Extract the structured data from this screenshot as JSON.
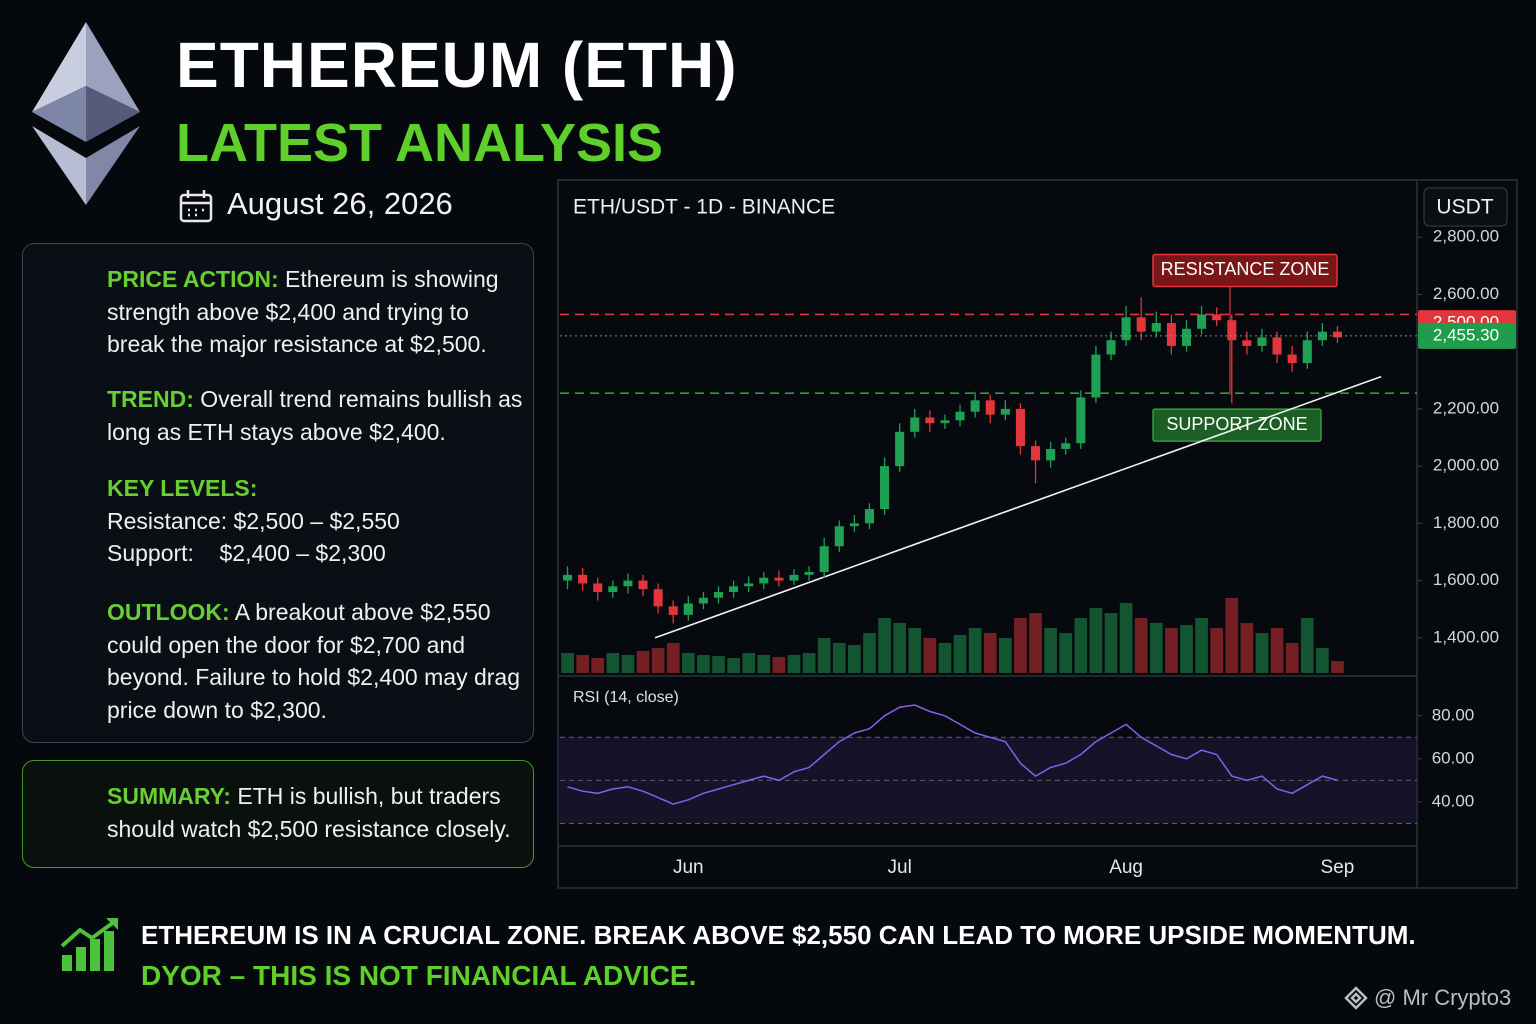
{
  "header": {
    "title": "ETHEREUM (ETH)",
    "subtitle": "LATEST ANALYSIS",
    "date": "August 26, 2026"
  },
  "analysis": [
    {
      "label": "PRICE ACTION:",
      "text": "Ethereum is showing strength above $2,400 and trying to break the major resistance at $2,500."
    },
    {
      "label": "TREND:",
      "text": "Overall trend remains bullish as long as ETH stays above $2,400."
    },
    {
      "label": "KEY LEVELS:",
      "lines": [
        "Resistance: $2,500 – $2,550",
        "Support:    $2,400 – $2,300"
      ]
    },
    {
      "label": "OUTLOOK:",
      "text": "A breakout above $2,550 could open the door for $2,700 and beyond. Failure to hold $2,400 may drag price down to $2,300."
    }
  ],
  "summary": {
    "label": "SUMMARY:",
    "text": "ETH is bullish, but traders should watch $2,500 resistance closely."
  },
  "footer": {
    "headline": "ETHEREUM IS IN A CRUCIAL ZONE. BREAK ABOVE $2,550 CAN LEAD TO MORE UPSIDE MOMENTUM.",
    "disclaimer": "DYOR – THIS IS NOT FINANCIAL ADVICE.",
    "watermark": "@ Mr Crypto3"
  },
  "chart_data": {
    "type": "candlestick",
    "title": "ETH/USDT - 1D - BINANCE",
    "currency": "USDT",
    "categories": [
      null,
      null,
      null,
      null,
      null,
      null,
      null,
      null,
      "Jun",
      null,
      null,
      null,
      null,
      null,
      null,
      null,
      null,
      null,
      null,
      null,
      null,
      null,
      "Jul",
      null,
      null,
      null,
      null,
      null,
      null,
      null,
      null,
      null,
      null,
      null,
      null,
      null,
      null,
      "Aug",
      null,
      null,
      null,
      null,
      null,
      null,
      null,
      null,
      null,
      null,
      null,
      null,
      null,
      "Sep"
    ],
    "open": [
      1600,
      1620,
      1590,
      1560,
      1580,
      1600,
      1570,
      1510,
      1480,
      1520,
      1540,
      1560,
      1580,
      1590,
      1610,
      1600,
      1620,
      1630,
      1720,
      1790,
      1800,
      1850,
      2000,
      2120,
      2170,
      2150,
      2160,
      2190,
      2230,
      2180,
      2200,
      2070,
      2020,
      2060,
      2080,
      2240,
      2390,
      2440,
      2520,
      2470,
      2500,
      2420,
      2480,
      2530,
      2510,
      2440,
      2420,
      2450,
      2390,
      2360,
      2440,
      2470
    ],
    "high": [
      1650,
      1645,
      1610,
      1600,
      1625,
      1620,
      1590,
      1530,
      1545,
      1560,
      1580,
      1600,
      1615,
      1630,
      1635,
      1640,
      1650,
      1750,
      1810,
      1830,
      1870,
      2030,
      2150,
      2200,
      2195,
      2180,
      2215,
      2260,
      2250,
      2230,
      2220,
      2090,
      2085,
      2100,
      2265,
      2420,
      2470,
      2560,
      2590,
      2540,
      2530,
      2510,
      2560,
      2555,
      2530,
      2470,
      2480,
      2470,
      2420,
      2470,
      2500,
      2490
    ],
    "low": [
      1570,
      1565,
      1530,
      1540,
      1555,
      1545,
      1485,
      1450,
      1460,
      1500,
      1520,
      1540,
      1560,
      1570,
      1580,
      1585,
      1600,
      1610,
      1700,
      1770,
      1780,
      1830,
      1980,
      2100,
      2120,
      2130,
      2140,
      2170,
      2150,
      2160,
      2040,
      1940,
      1995,
      2040,
      2060,
      2220,
      2370,
      2420,
      2440,
      2450,
      2390,
      2400,
      2460,
      2490,
      2220,
      2390,
      2400,
      2360,
      2330,
      2340,
      2420,
      2430
    ],
    "close": [
      1620,
      1590,
      1560,
      1580,
      1600,
      1570,
      1510,
      1480,
      1520,
      1540,
      1560,
      1580,
      1590,
      1610,
      1600,
      1620,
      1630,
      1720,
      1790,
      1800,
      1850,
      2000,
      2120,
      2170,
      2150,
      2160,
      2190,
      2230,
      2180,
      2200,
      2070,
      2020,
      2060,
      2080,
      2240,
      2390,
      2440,
      2520,
      2470,
      2500,
      2420,
      2480,
      2530,
      2510,
      2440,
      2420,
      2450,
      2390,
      2360,
      2440,
      2470,
      2450
    ],
    "volume": [
      20,
      18,
      15,
      20,
      18,
      22,
      25,
      30,
      20,
      18,
      17,
      15,
      20,
      18,
      16,
      18,
      20,
      35,
      30,
      28,
      40,
      55,
      50,
      45,
      35,
      30,
      38,
      45,
      40,
      35,
      55,
      60,
      45,
      40,
      55,
      65,
      60,
      70,
      55,
      50,
      45,
      48,
      55,
      45,
      75,
      50,
      40,
      45,
      30,
      55,
      25,
      12
    ],
    "volume_lim": [
      0,
      100
    ],
    "up_color": "#1fa055",
    "down_color": "#e2353c",
    "ylim": [
      1270,
      3000
    ],
    "yticks": [
      {
        "value": 1400,
        "label": "1,400.00"
      },
      {
        "value": 1600,
        "label": "1,600.00"
      },
      {
        "value": 1800,
        "label": "1,800.00"
      },
      {
        "value": 2000,
        "label": "2,000.00"
      },
      {
        "value": 2200,
        "label": "2,200.00"
      },
      {
        "value": 2600,
        "label": "2,600.00"
      },
      {
        "value": 2800,
        "label": "2,800.00"
      }
    ],
    "price_marks": [
      {
        "value": 2500,
        "label": "2,500.00",
        "color": "#e2353c",
        "line": false
      },
      {
        "value": 2455.3,
        "label": "2,455.30",
        "color": "#1f9d4c",
        "line": true
      }
    ],
    "resistance": {
      "value": 2530,
      "label": "RESISTANCE ZONE",
      "color": "#e2353c"
    },
    "support": {
      "value": 2255,
      "label": "SUPPORT ZONE",
      "color": "#2f9e3a"
    },
    "trendline": {
      "x": [
        5.8,
        53.9
      ],
      "y": [
        1400,
        2313
      ]
    },
    "rsi": {
      "title": "RSI (14, close)",
      "color": "#8b5cf0",
      "values": [
        47,
        45,
        44,
        46,
        47,
        45,
        42,
        39,
        41,
        44,
        46,
        48,
        50,
        52,
        50,
        54,
        56,
        62,
        68,
        72,
        74,
        80,
        84,
        85,
        82,
        80,
        76,
        72,
        70,
        68,
        58,
        52,
        56,
        58,
        62,
        68,
        72,
        76,
        70,
        66,
        62,
        60,
        64,
        62,
        52,
        50,
        52,
        46,
        44,
        48,
        52,
        50
      ],
      "ylim": [
        20,
        98
      ],
      "yticks": [
        {
          "value": 40,
          "label": "40.00"
        },
        {
          "value": 60,
          "label": "60.00"
        },
        {
          "value": 80,
          "label": "80.00"
        }
      ],
      "levels": [
        70,
        50,
        30
      ]
    }
  }
}
